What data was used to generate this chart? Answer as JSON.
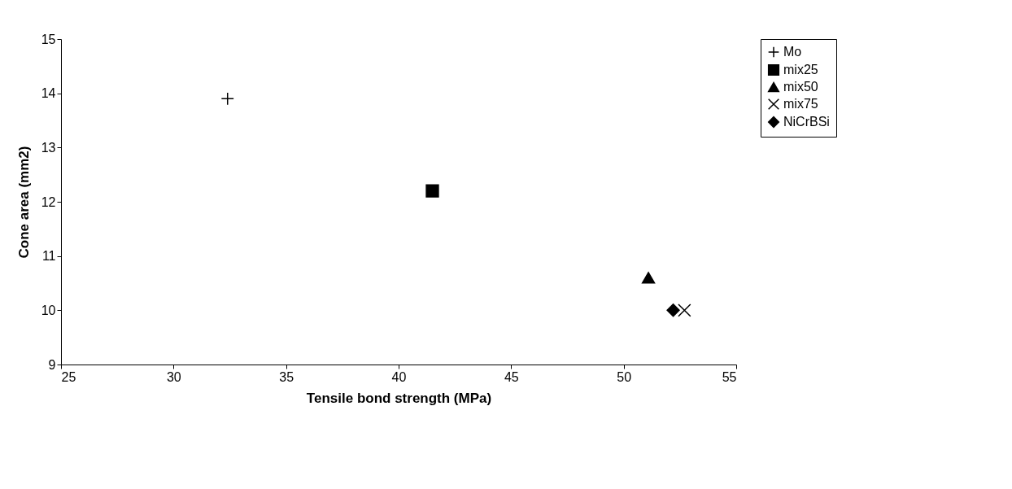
{
  "chart_data": {
    "type": "scatter",
    "xlabel": "Tensile bond strength (MPa)",
    "ylabel": "Cone area (mm2)",
    "xlim": [
      25,
      55
    ],
    "xticks": [
      25,
      30,
      35,
      40,
      45,
      50,
      55
    ],
    "ylim": [
      9,
      15
    ],
    "yticks": [
      9,
      10,
      11,
      12,
      13,
      14,
      15
    ],
    "grid": false,
    "legend": "right",
    "series": [
      {
        "name": "Mo",
        "color": "#000000",
        "marker": "plus",
        "x": [
          32.4
        ],
        "values": [
          13.9
        ]
      },
      {
        "name": "mix25",
        "color": "#000000",
        "marker": "square",
        "x": [
          41.5
        ],
        "values": [
          12.2
        ]
      },
      {
        "name": "mix50",
        "color": "#000000",
        "marker": "triangle",
        "x": [
          51.1
        ],
        "values": [
          10.6
        ]
      },
      {
        "name": "mix75",
        "color": "#000000",
        "marker": "cross",
        "x": [
          52.7
        ],
        "values": [
          10.0
        ]
      },
      {
        "name": "NiCrBSi",
        "color": "#000000",
        "marker": "diamond",
        "x": [
          52.2
        ],
        "values": [
          10.0
        ]
      }
    ]
  }
}
